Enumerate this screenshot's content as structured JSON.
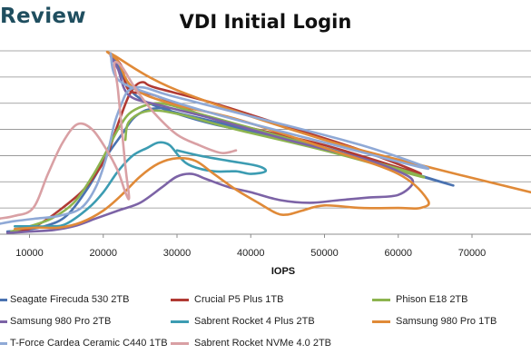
{
  "brand": "Review",
  "chart_data": {
    "type": "line",
    "title": "VDI Initial Login",
    "xlabel": "IOPS",
    "ylabel": "",
    "xlim": [
      6000,
      78000
    ],
    "ylim": [
      0,
      7
    ],
    "xticks": [
      10000,
      20000,
      30000,
      40000,
      50000,
      60000,
      70000
    ],
    "xtick_labels": [
      "10000",
      "20000",
      "30000",
      "40000",
      "50000",
      "60000",
      "70000"
    ],
    "grid": true,
    "legend_position": "bottom",
    "series": [
      {
        "name": "Seagate Firecuda 530 2TB",
        "color": "#4a72b0",
        "points": [
          [
            7000,
            0.1
          ],
          [
            9000,
            0.15
          ],
          [
            12000,
            0.3
          ],
          [
            15000,
            0.7
          ],
          [
            18000,
            1.8
          ],
          [
            20500,
            3.0
          ],
          [
            22500,
            3.8
          ],
          [
            24000,
            4.4
          ],
          [
            25500,
            4.7
          ],
          [
            27000,
            4.8
          ],
          [
            28500,
            4.8
          ],
          [
            30000,
            4.6
          ],
          [
            35000,
            4.2
          ],
          [
            45000,
            3.6
          ],
          [
            55000,
            2.9
          ],
          [
            62000,
            2.3
          ],
          [
            67000,
            1.9
          ],
          [
            50000,
            3.3
          ],
          [
            35000,
            4.3
          ],
          [
            28000,
            4.8
          ],
          [
            24000,
            5.4
          ],
          [
            22000,
            6.4
          ],
          [
            21000,
            6.9
          ]
        ]
      },
      {
        "name": "Crucial P5 Plus 1TB",
        "color": "#b03a34",
        "points": [
          [
            8000,
            0.1
          ],
          [
            10000,
            0.2
          ],
          [
            12000,
            0.5
          ],
          [
            14000,
            0.9
          ],
          [
            17000,
            1.6
          ],
          [
            19000,
            2.3
          ],
          [
            20500,
            3.0
          ],
          [
            21500,
            3.8
          ],
          [
            22500,
            4.6
          ],
          [
            23500,
            5.3
          ],
          [
            24500,
            5.7
          ],
          [
            25500,
            5.8
          ],
          [
            27000,
            5.6
          ],
          [
            35000,
            5.0
          ],
          [
            45000,
            4.1
          ],
          [
            55000,
            3.2
          ],
          [
            63000,
            2.3
          ],
          [
            50000,
            3.4
          ],
          [
            35000,
            4.4
          ],
          [
            27000,
            5.3
          ],
          [
            23500,
            5.5
          ],
          [
            22500,
            6.4
          ],
          [
            21000,
            6.9
          ]
        ]
      },
      {
        "name": "Phison E18 2TB",
        "color": "#8db44f",
        "points": [
          [
            7500,
            0.1
          ],
          [
            10000,
            0.3
          ],
          [
            13000,
            0.6
          ],
          [
            16000,
            1.2
          ],
          [
            18500,
            2.2
          ],
          [
            20500,
            3.2
          ],
          [
            22000,
            4.0
          ],
          [
            23500,
            4.6
          ],
          [
            25500,
            4.9
          ],
          [
            27500,
            5.0
          ],
          [
            29500,
            4.9
          ],
          [
            33000,
            4.6
          ],
          [
            42000,
            3.9
          ],
          [
            52000,
            3.1
          ],
          [
            60000,
            2.5
          ],
          [
            63000,
            2.2
          ],
          [
            50000,
            3.2
          ],
          [
            38000,
            4.0
          ],
          [
            30000,
            4.6
          ],
          [
            26000,
            4.7
          ],
          [
            23500,
            4.3
          ],
          [
            23000,
            3.6
          ]
        ]
      },
      {
        "name": "Samsung 980 Pro 2TB",
        "color": "#7c63a6",
        "points": [
          [
            7000,
            0.05
          ],
          [
            10000,
            0.1
          ],
          [
            13000,
            0.15
          ],
          [
            16000,
            0.3
          ],
          [
            19000,
            0.6
          ],
          [
            22000,
            0.9
          ],
          [
            25000,
            1.2
          ],
          [
            28000,
            1.8
          ],
          [
            30000,
            2.2
          ],
          [
            32000,
            2.3
          ],
          [
            34000,
            2.1
          ],
          [
            37000,
            1.8
          ],
          [
            40000,
            1.6
          ],
          [
            44000,
            1.3
          ],
          [
            48000,
            1.2
          ],
          [
            52000,
            1.3
          ],
          [
            56000,
            1.4
          ],
          [
            60000,
            1.5
          ],
          [
            62000,
            2.0
          ],
          [
            60000,
            2.4
          ],
          [
            55000,
            2.9
          ],
          [
            45000,
            3.6
          ],
          [
            35000,
            4.4
          ],
          [
            28000,
            4.9
          ],
          [
            23500,
            5.3
          ],
          [
            22000,
            6.3
          ],
          [
            21000,
            6.8
          ]
        ]
      },
      {
        "name": "Sabrent Rocket 4 Plus 2TB",
        "color": "#3c9cb2",
        "points": [
          [
            8000,
            0.3
          ],
          [
            10000,
            0.3
          ],
          [
            13000,
            0.3
          ],
          [
            15000,
            0.4
          ],
          [
            18000,
            1.0
          ],
          [
            20000,
            1.6
          ],
          [
            22000,
            2.4
          ],
          [
            24000,
            3.0
          ],
          [
            26000,
            3.3
          ],
          [
            27500,
            3.5
          ],
          [
            29000,
            3.4
          ],
          [
            30500,
            2.9
          ],
          [
            32000,
            2.6
          ],
          [
            35000,
            2.4
          ],
          [
            38000,
            2.4
          ],
          [
            40000,
            2.3
          ],
          [
            42000,
            2.4
          ],
          [
            41000,
            2.6
          ],
          [
            37000,
            2.8
          ],
          [
            33000,
            3.0
          ],
          [
            30000,
            3.2
          ]
        ]
      },
      {
        "name": "Samsung 980 Pro 1TB",
        "color": "#e08a38",
        "points": [
          [
            8000,
            0.2
          ],
          [
            11000,
            0.25
          ],
          [
            14000,
            0.25
          ],
          [
            17000,
            0.45
          ],
          [
            20000,
            0.9
          ],
          [
            22500,
            1.5
          ],
          [
            25000,
            2.2
          ],
          [
            27500,
            2.7
          ],
          [
            30000,
            2.9
          ],
          [
            32500,
            2.8
          ],
          [
            35000,
            2.3
          ],
          [
            38000,
            1.7
          ],
          [
            41000,
            1.2
          ],
          [
            43500,
            0.8
          ],
          [
            45000,
            0.75
          ],
          [
            47000,
            0.9
          ],
          [
            50000,
            1.1
          ],
          [
            55000,
            1.0
          ],
          [
            60000,
            1.0
          ],
          [
            63000,
            1.0
          ],
          [
            64000,
            1.3
          ],
          [
            60000,
            2.3
          ],
          [
            50000,
            3.3
          ],
          [
            38000,
            4.4
          ],
          [
            29000,
            5.0
          ],
          [
            24000,
            5.6
          ],
          [
            22000,
            6.6
          ],
          [
            21000,
            6.9
          ],
          [
            30000,
            5.5
          ],
          [
            50000,
            3.6
          ],
          [
            65000,
            2.5
          ],
          [
            78000,
            1.6
          ]
        ]
      },
      {
        "name": "T-Force Cardea Ceramic C440 1TB",
        "color": "#8fa9d6",
        "points": [
          [
            6000,
            0.4
          ],
          [
            8000,
            0.5
          ],
          [
            11000,
            0.6
          ],
          [
            14000,
            0.7
          ],
          [
            17000,
            1.0
          ],
          [
            19000,
            1.8
          ],
          [
            20500,
            3.0
          ],
          [
            21500,
            4.2
          ],
          [
            22500,
            5.0
          ],
          [
            23500,
            5.5
          ],
          [
            25500,
            5.6
          ],
          [
            29000,
            5.3
          ],
          [
            40000,
            4.5
          ],
          [
            55000,
            3.4
          ],
          [
            64000,
            2.5
          ],
          [
            50000,
            3.5
          ],
          [
            35000,
            4.6
          ],
          [
            27000,
            5.3
          ],
          [
            22000,
            5.9
          ],
          [
            21000,
            6.9
          ]
        ]
      },
      {
        "name": "Sabrent Rocket NVMe 4.0 2TB",
        "color": "#d9a0a4",
        "points": [
          [
            6000,
            0.6
          ],
          [
            8000,
            0.7
          ],
          [
            10500,
            1.0
          ],
          [
            12500,
            2.3
          ],
          [
            14500,
            3.5
          ],
          [
            16500,
            4.2
          ],
          [
            18500,
            4.0
          ],
          [
            20500,
            3.2
          ],
          [
            22000,
            2.4
          ],
          [
            23000,
            1.6
          ],
          [
            23500,
            1.4
          ],
          [
            23000,
            2.6
          ],
          [
            22000,
            5.5
          ],
          [
            21500,
            6.5
          ],
          [
            22500,
            6.4
          ],
          [
            24500,
            5.5
          ],
          [
            27000,
            4.6
          ],
          [
            30000,
            3.8
          ],
          [
            33000,
            3.4
          ],
          [
            36000,
            3.1
          ],
          [
            38000,
            3.2
          ]
        ]
      }
    ]
  }
}
